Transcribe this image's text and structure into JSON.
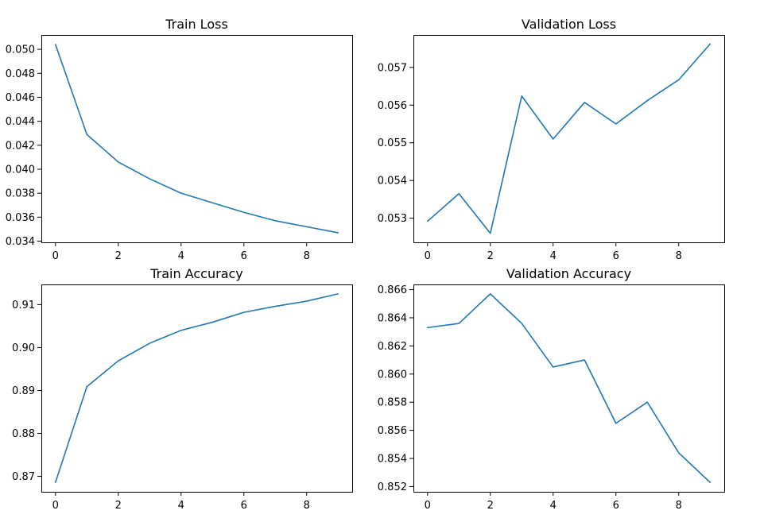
{
  "figure": {
    "line_color": "#1f77b4",
    "background": "#ffffff"
  },
  "chart_data": [
    {
      "type": "line",
      "title": "Train Loss",
      "x": [
        0,
        1,
        2,
        3,
        4,
        5,
        6,
        7,
        8,
        9
      ],
      "series": [
        {
          "values": [
            0.0504,
            0.0429,
            0.0406,
            0.0392,
            0.038,
            0.0372,
            0.0364,
            0.0357,
            0.0352,
            0.0347
          ]
        }
      ],
      "xlim": [
        -0.45,
        9.45
      ],
      "ylim": [
        0.0339,
        0.0512
      ],
      "xticks": [
        0,
        2,
        4,
        6,
        8
      ],
      "xtick_labels": [
        "0",
        "2",
        "4",
        "6",
        "8"
      ],
      "yticks": [
        0.034,
        0.036,
        0.038,
        0.04,
        0.042,
        0.044,
        0.046,
        0.048,
        0.05
      ],
      "ytick_labels": [
        "0.034",
        "0.036",
        "0.038",
        "0.040",
        "0.042",
        "0.044",
        "0.046",
        "0.048",
        "0.050"
      ],
      "grid": false
    },
    {
      "type": "line",
      "title": "Validation Loss",
      "x": [
        0,
        1,
        2,
        3,
        4,
        5,
        6,
        7,
        8,
        9
      ],
      "series": [
        {
          "values": [
            0.05292,
            0.05365,
            0.0526,
            0.05624,
            0.0551,
            0.05607,
            0.0555,
            0.05612,
            0.05667,
            0.05762
          ]
        }
      ],
      "xlim": [
        -0.45,
        9.45
      ],
      "ylim": [
        0.05236,
        0.05786
      ],
      "xticks": [
        0,
        2,
        4,
        6,
        8
      ],
      "xtick_labels": [
        "0",
        "2",
        "4",
        "6",
        "8"
      ],
      "yticks": [
        0.053,
        0.054,
        0.055,
        0.056,
        0.057
      ],
      "ytick_labels": [
        "0.053",
        "0.054",
        "0.055",
        "0.056",
        "0.057"
      ],
      "grid": false
    },
    {
      "type": "line",
      "title": "Train Accuracy",
      "x": [
        0,
        1,
        2,
        3,
        4,
        5,
        6,
        7,
        8,
        9
      ],
      "series": [
        {
          "values": [
            0.8686,
            0.8909,
            0.8969,
            0.901,
            0.904,
            0.9059,
            0.9082,
            0.9096,
            0.9108,
            0.9125
          ]
        }
      ],
      "xlim": [
        -0.45,
        9.45
      ],
      "ylim": [
        0.8664,
        0.9147
      ],
      "xticks": [
        0,
        2,
        4,
        6,
        8
      ],
      "xtick_labels": [
        "0",
        "2",
        "4",
        "6",
        "8"
      ],
      "yticks": [
        0.87,
        0.88,
        0.89,
        0.9,
        0.91
      ],
      "ytick_labels": [
        "0.87",
        "0.88",
        "0.89",
        "0.90",
        "0.91"
      ],
      "grid": false
    },
    {
      "type": "line",
      "title": "Validation Accuracy",
      "x": [
        0,
        1,
        2,
        3,
        4,
        5,
        6,
        7,
        8,
        9
      ],
      "series": [
        {
          "values": [
            0.8633,
            0.8636,
            0.8657,
            0.8636,
            0.8605,
            0.861,
            0.8565,
            0.858,
            0.8544,
            0.8523
          ]
        }
      ],
      "xlim": [
        -0.45,
        9.45
      ],
      "ylim": [
        0.85163,
        0.86637
      ],
      "xticks": [
        0,
        2,
        4,
        6,
        8
      ],
      "xtick_labels": [
        "0",
        "2",
        "4",
        "6",
        "8"
      ],
      "yticks": [
        0.852,
        0.854,
        0.856,
        0.858,
        0.86,
        0.862,
        0.864,
        0.866
      ],
      "ytick_labels": [
        "0.852",
        "0.854",
        "0.856",
        "0.858",
        "0.860",
        "0.862",
        "0.864",
        "0.866"
      ],
      "grid": false
    }
  ]
}
